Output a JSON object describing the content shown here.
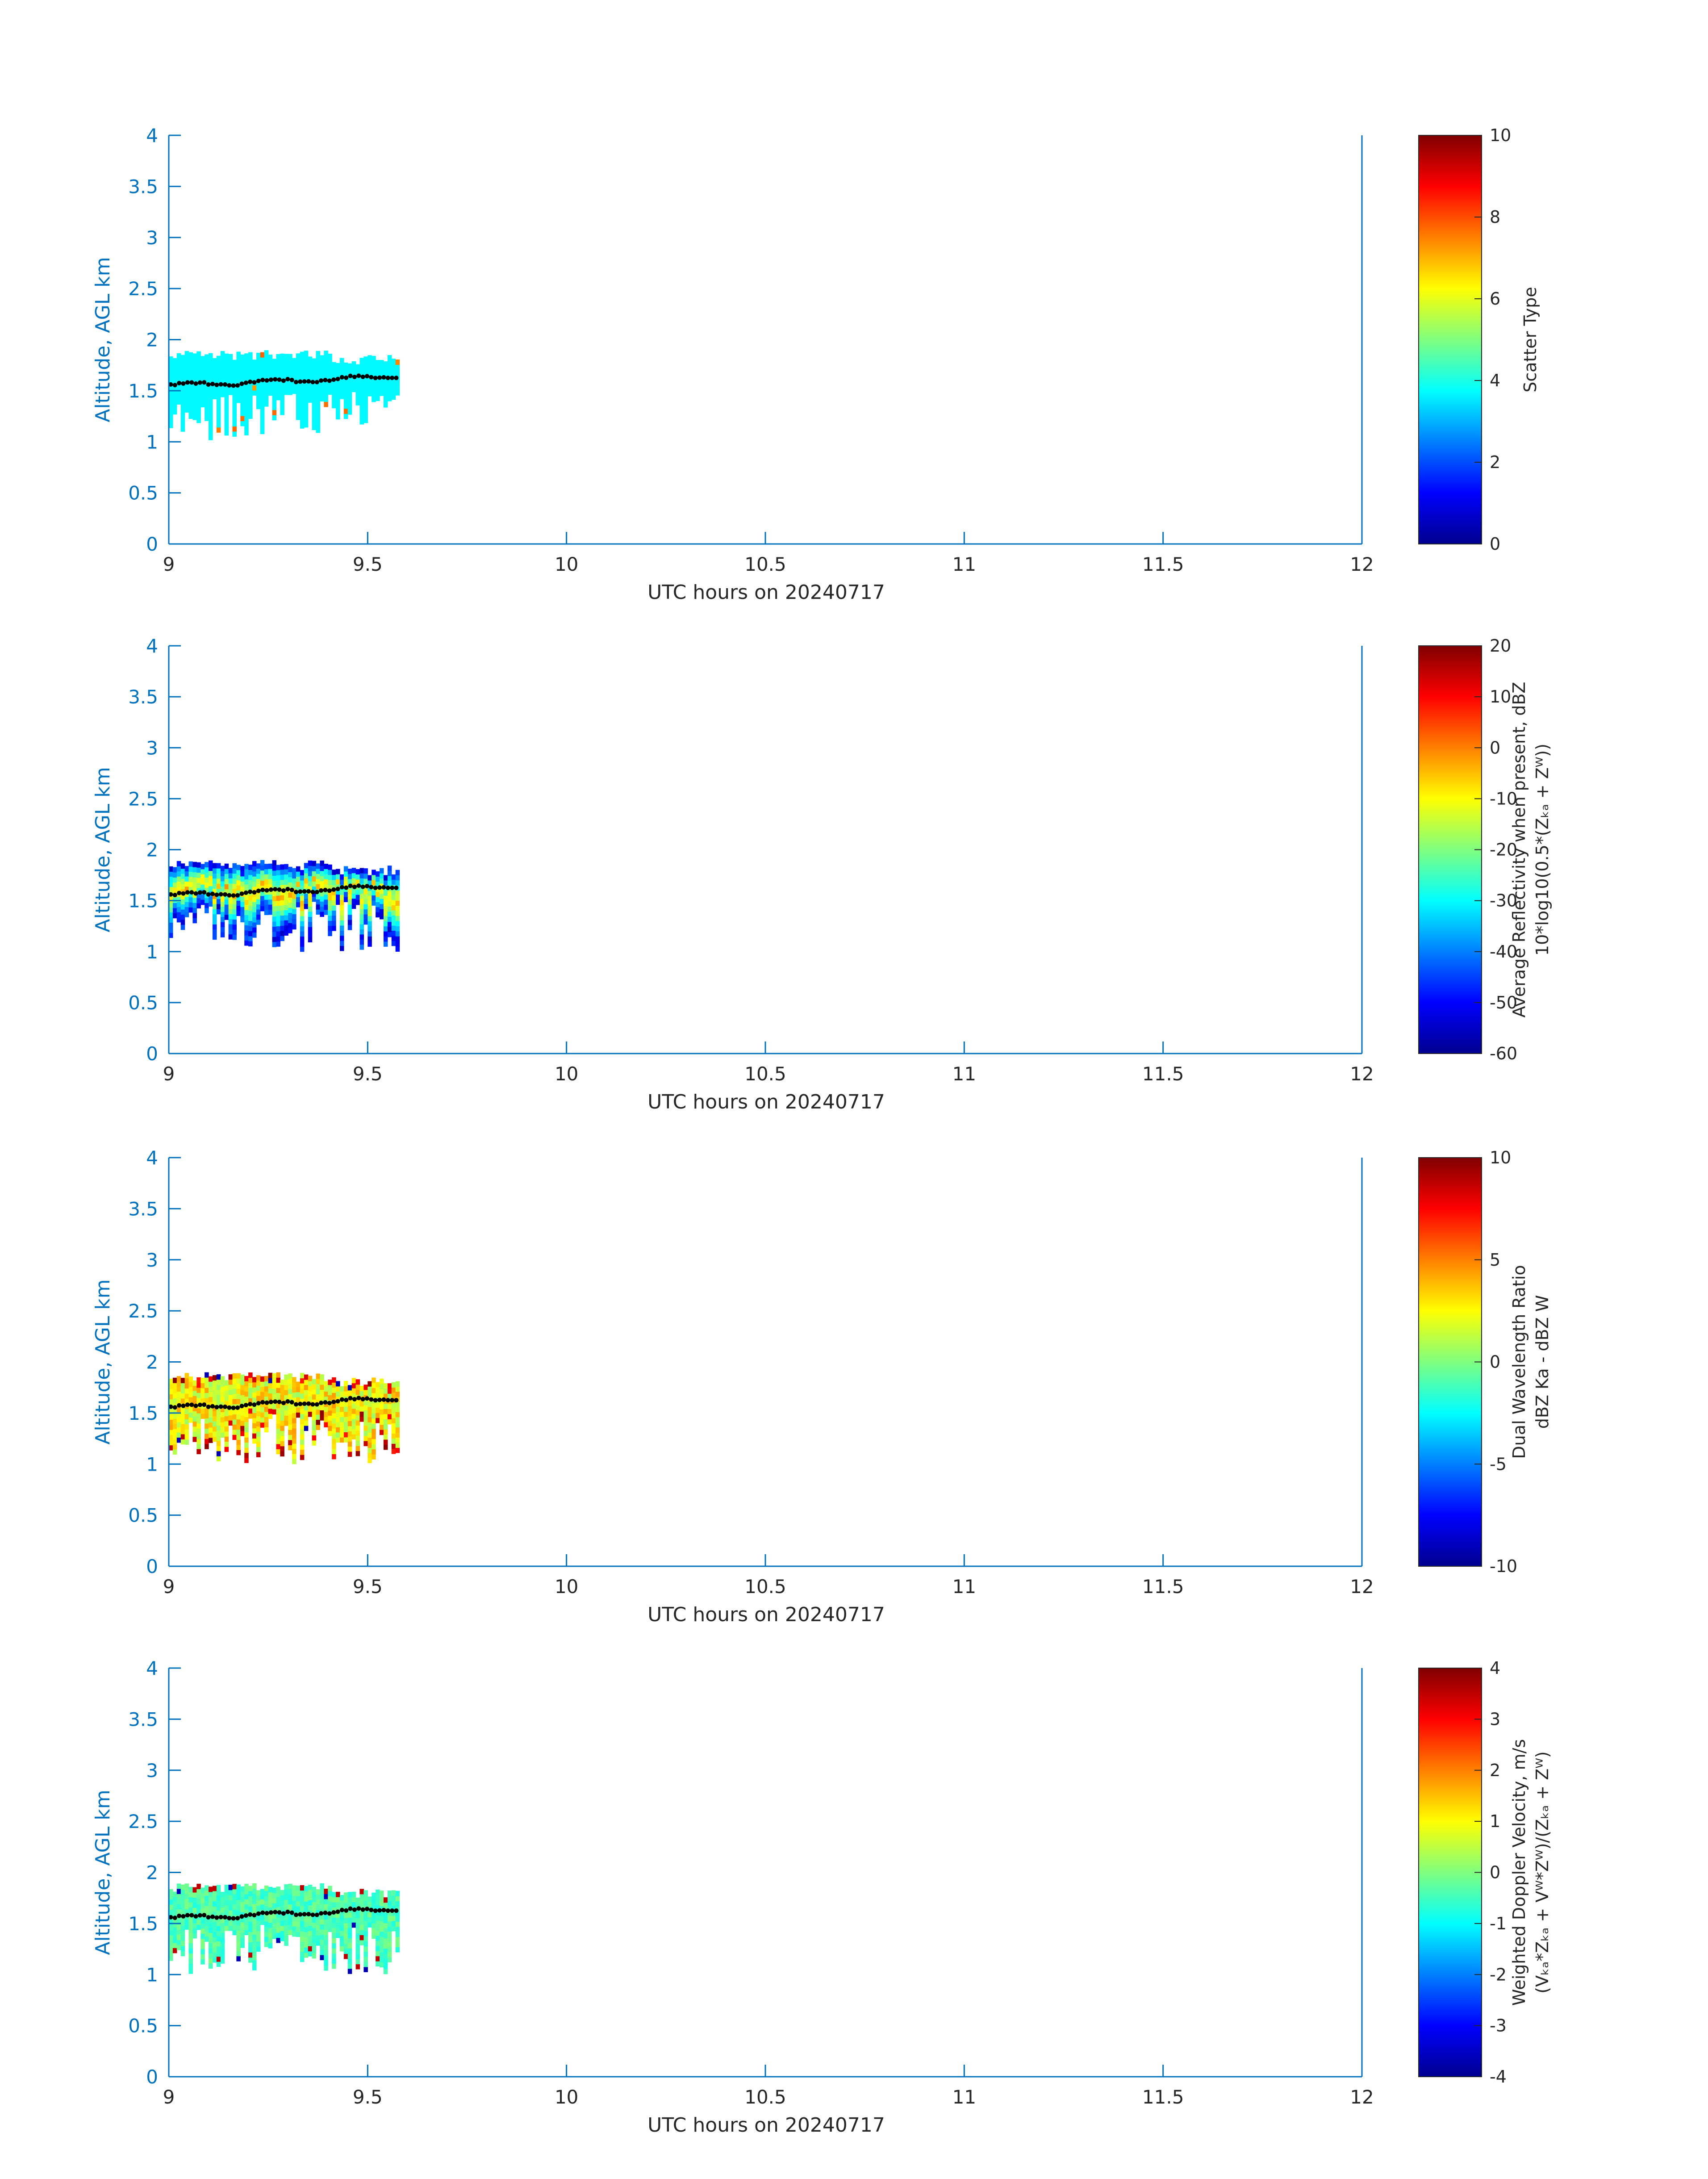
{
  "chart_data": [
    {
      "type": "heatmap",
      "panel": 1,
      "colormap": "jet",
      "xlim": [
        9,
        12
      ],
      "ylim": [
        0,
        4
      ],
      "x_ticks": [
        "9",
        "9.5",
        "10",
        "10.5",
        "11",
        "11.5",
        "12"
      ],
      "y_ticks": [
        "0",
        "0.5",
        "1",
        "1.5",
        "2",
        "2.5",
        "3",
        "3.5",
        "4"
      ],
      "xlabel": "UTC hours on 20240717",
      "ylabel": "Altitude, AGL km",
      "colorbar": {
        "range": [
          0,
          10
        ],
        "ticks": [
          "0",
          "2",
          "4",
          "6",
          "8",
          "10"
        ],
        "label_lines": [
          "Scatter Type"
        ]
      },
      "echo_field": "scatter_type",
      "features": {
        "base_value": 3.7,
        "speckle_hi": [
          7.2,
          7.8
        ],
        "speckle_lo": [
          3.2,
          3.6
        ]
      }
    },
    {
      "type": "heatmap",
      "panel": 2,
      "colormap": "jet",
      "xlim": [
        9,
        12
      ],
      "ylim": [
        0,
        4
      ],
      "x_ticks": [
        "9",
        "9.5",
        "10",
        "10.5",
        "11",
        "11.5",
        "12"
      ],
      "y_ticks": [
        "0",
        "0.5",
        "1",
        "1.5",
        "2",
        "2.5",
        "3",
        "3.5",
        "4"
      ],
      "xlabel": "UTC hours on 20240717",
      "ylabel": "Altitude, AGL km",
      "colorbar": {
        "range": [
          -60,
          20
        ],
        "ticks": [
          "-60",
          "-50",
          "-40",
          "-30",
          "-20",
          "-10",
          "0",
          "10",
          "20"
        ],
        "label_lines": [
          "Average Reflectivity when present, dBZ",
          "10*log10(0.5*(Zₖₐ + Zᵂ))"
        ]
      },
      "echo_field": "reflectivity",
      "features": {
        "core_value": -5,
        "edge_value": -55
      }
    },
    {
      "type": "heatmap",
      "panel": 3,
      "colormap": "jet",
      "xlim": [
        9,
        12
      ],
      "ylim": [
        0,
        4
      ],
      "x_ticks": [
        "9",
        "9.5",
        "10",
        "10.5",
        "11",
        "11.5",
        "12"
      ],
      "y_ticks": [
        "0",
        "0.5",
        "1",
        "1.5",
        "2",
        "2.5",
        "3",
        "3.5",
        "4"
      ],
      "xlabel": "UTC hours on 20240717",
      "ylabel": "Altitude, AGL km",
      "colorbar": {
        "range": [
          -10,
          10
        ],
        "ticks": [
          "-10",
          "-5",
          "0",
          "5",
          "10"
        ],
        "label_lines": [
          "Dual Wavelength Ratio",
          "dBZ Ka - dBZ W"
        ]
      },
      "echo_field": "dwr",
      "features": {
        "core_value": 2.5,
        "edge_value": 7
      }
    },
    {
      "type": "heatmap",
      "panel": 4,
      "colormap": "jet",
      "xlim": [
        9,
        12
      ],
      "ylim": [
        0,
        4
      ],
      "x_ticks": [
        "9",
        "9.5",
        "10",
        "10.5",
        "11",
        "11.5",
        "12"
      ],
      "y_ticks": [
        "0",
        "0.5",
        "1",
        "1.5",
        "2",
        "2.5",
        "3",
        "3.5",
        "4"
      ],
      "xlabel": "UTC hours on 20240717",
      "ylabel": "Altitude, AGL km",
      "colorbar": {
        "range": [
          -4,
          4
        ],
        "ticks": [
          "-4",
          "-3",
          "-2",
          "-1",
          "0",
          "1",
          "2",
          "3",
          "4"
        ],
        "label_lines": [
          "Weighted Doppler Velocity, m/s",
          "(Vₖₐ*Zₖₐ + Vᵂ*Zᵂ)/(Zₖₐ + Zᵂ)"
        ]
      },
      "echo_field": "doppler_velocity",
      "features": {
        "core_value": -0.4
      }
    }
  ],
  "echo_layer": {
    "time_range": [
      9.0,
      9.58
    ],
    "top_km": 1.85,
    "base_km_range": [
      1.0,
      1.5
    ],
    "dotted_line_km": 1.55
  },
  "colors": {
    "axis_y": "#0072bd",
    "axis_x": "#262626",
    "dots": "#000000"
  }
}
